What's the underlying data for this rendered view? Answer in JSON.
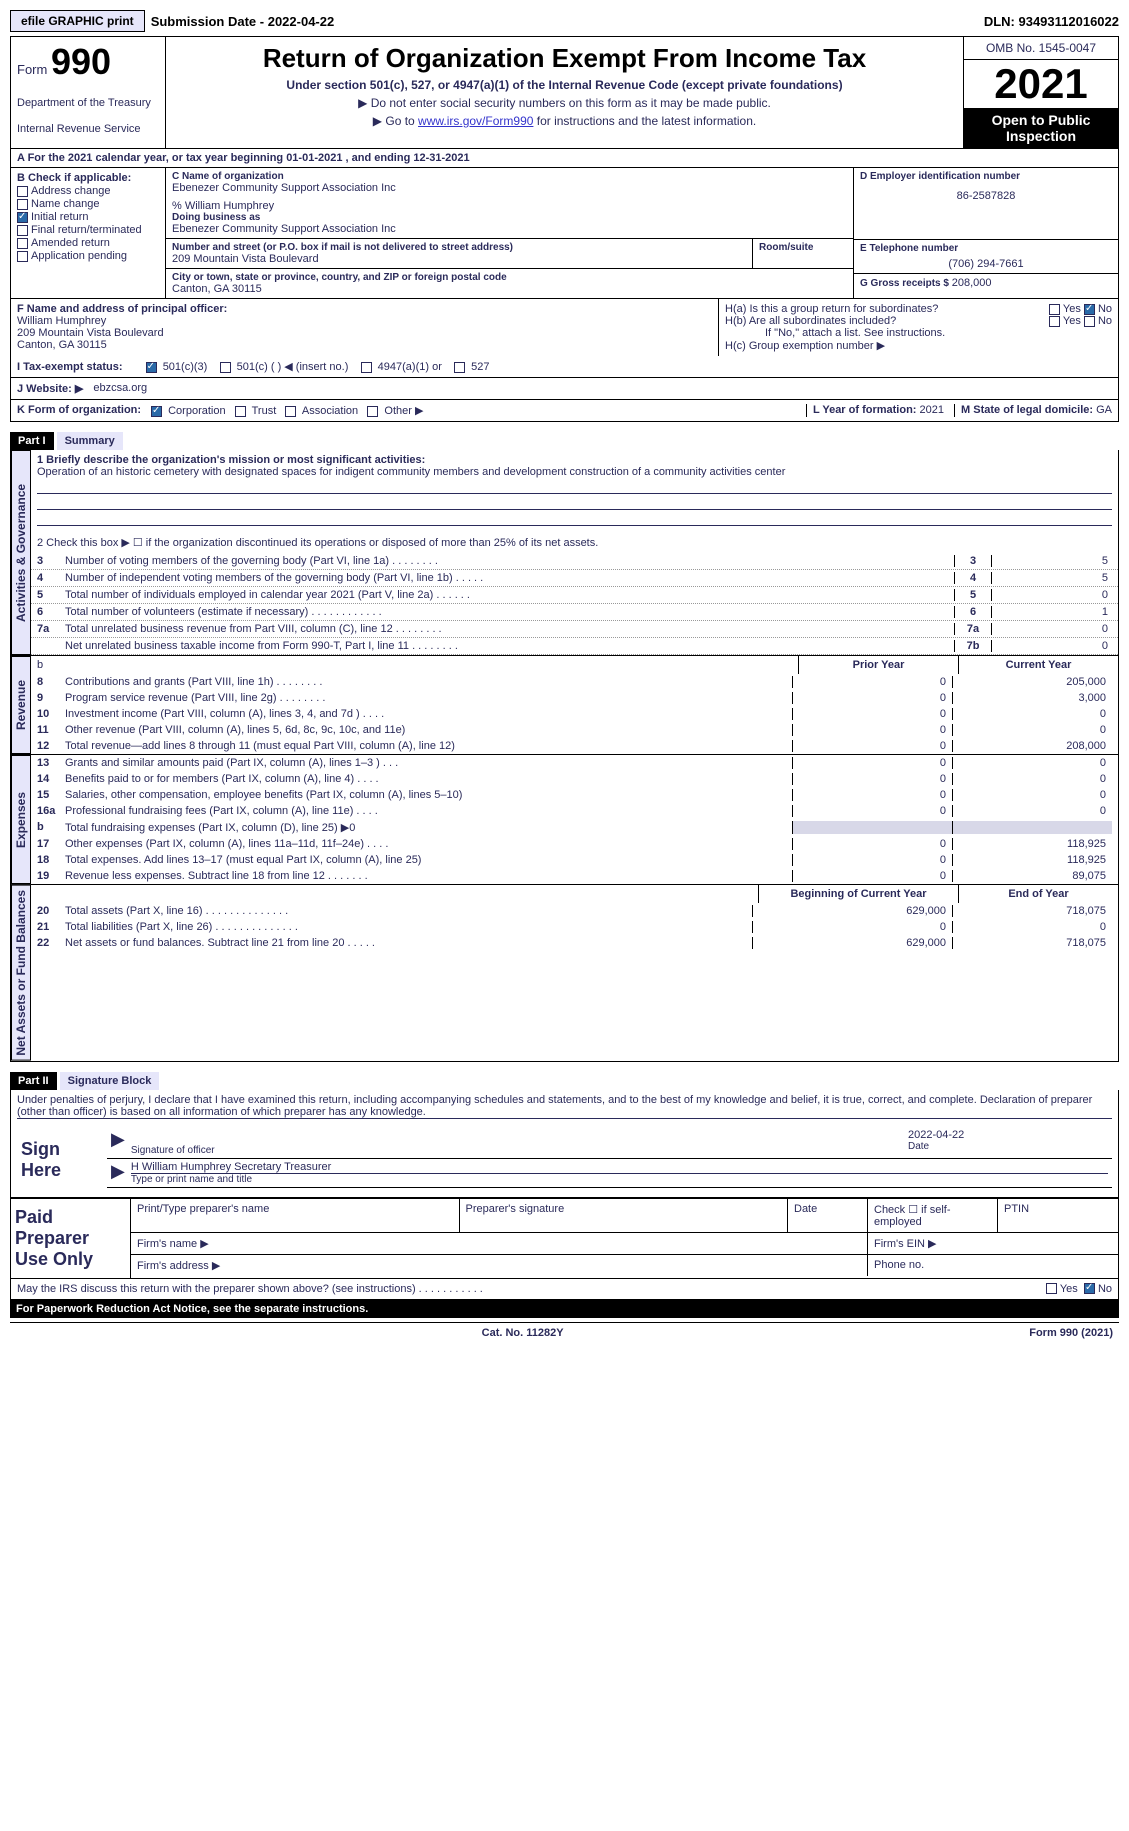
{
  "meta": {
    "efile_btn": "efile GRAPHIC print",
    "sub_date_label": "Submission Date - ",
    "sub_date": "2022-04-22",
    "dln_label": "DLN: ",
    "dln": "93493112016022"
  },
  "header": {
    "form_prefix": "Form",
    "form_number": "990",
    "dept": "Department of the Treasury",
    "irs": "Internal Revenue Service",
    "title": "Return of Organization Exempt From Income Tax",
    "sub": "Under section 501(c), 527, or 4947(a)(1) of the Internal Revenue Code (except private foundations)",
    "note1": "▶ Do not enter social security numbers on this form as it may be made public.",
    "note2_pre": "▶ Go to ",
    "note2_link": "www.irs.gov/Form990",
    "note2_post": " for instructions and the latest information.",
    "omb": "OMB No. 1545-0047",
    "year": "2021",
    "open": "Open to Public Inspection"
  },
  "row_a": {
    "text": "A For the 2021 calendar year, or tax year beginning 01-01-2021    , and ending 12-31-2021"
  },
  "col_b": {
    "hdr": "B Check if applicable:",
    "items": [
      {
        "label": "Address change",
        "checked": false
      },
      {
        "label": "Name change",
        "checked": false
      },
      {
        "label": "Initial return",
        "checked": true
      },
      {
        "label": "Final return/terminated",
        "checked": false
      },
      {
        "label": "Amended return",
        "checked": false
      },
      {
        "label": "Application pending",
        "checked": false
      }
    ]
  },
  "col_c": {
    "name_lbl": "C Name of organization",
    "name": "Ebenezer Community Support Association Inc",
    "care_of": "% William Humphrey",
    "dba_lbl": "Doing business as",
    "dba": "Ebenezer Community Support Association Inc",
    "street_lbl": "Number and street (or P.O. box if mail is not delivered to street address)",
    "street": "209 Mountain Vista Boulevard",
    "room_lbl": "Room/suite",
    "city_lbl": "City or town, state or province, country, and ZIP or foreign postal code",
    "city": "Canton, GA   30115"
  },
  "col_d": {
    "ein_lbl": "D Employer identification number",
    "ein": "86-2587828",
    "phone_lbl": "E Telephone number",
    "phone": "(706) 294-7661",
    "gross_lbl": "G Gross receipts $ ",
    "gross": "208,000"
  },
  "col_f": {
    "lbl": "F  Name and address of principal officer:",
    "name": "William Humphrey",
    "street": "209 Mountain Vista Boulevard",
    "city": "Canton, GA   30115"
  },
  "col_h": {
    "ha": "H(a)  Is this a group return for subordinates?",
    "ha_yes": "Yes",
    "ha_no": "No",
    "ha_checked": "No",
    "hb": "H(b)  Are all subordinates included?",
    "hb_yes": "Yes",
    "hb_no": "No",
    "hb_note": "If \"No,\" attach a list. See instructions.",
    "hc": "H(c)  Group exemption number ▶"
  },
  "row_i": {
    "lbl": "I   Tax-exempt status:",
    "opts": [
      "501(c)(3)",
      "501(c) (   ) ◀ (insert no.)",
      "4947(a)(1) or",
      "527"
    ],
    "checked_idx": 0
  },
  "row_j": {
    "lbl": "J   Website: ▶",
    "val": "ebzcsa.org"
  },
  "row_k": {
    "lbl": "K Form of organization:",
    "opts": [
      "Corporation",
      "Trust",
      "Association",
      "Other ▶"
    ],
    "checked_idx": 0,
    "l_lbl": "L Year of formation: ",
    "l_val": "2021",
    "m_lbl": "M State of legal domicile: ",
    "m_val": "GA"
  },
  "part1": {
    "hdr": "Part I",
    "title": "Summary",
    "mission_lbl": "1   Briefly describe the organization's mission or most significant activities:",
    "mission": "Operation of an historic cemetery with designated spaces for indigent community members and development construction of a community activities center",
    "line2": "2    Check this box ▶ ☐  if the organization discontinued its operations or disposed of more than 25% of its net assets.",
    "side_labels": {
      "gov": "Activities & Governance",
      "rev": "Revenue",
      "exp": "Expenses",
      "net": "Net Assets or Fund Balances"
    },
    "gov_lines": [
      {
        "n": "3",
        "t": "Number of voting members of the governing body (Part VI, line 1a)   .    .    .    .    .    .    .    .",
        "box": "3",
        "v": "5"
      },
      {
        "n": "4",
        "t": "Number of independent voting members of the governing body (Part VI, line 1b)  .    .    .    .    .",
        "box": "4",
        "v": "5"
      },
      {
        "n": "5",
        "t": "Total number of individuals employed in calendar year 2021 (Part V, line 2a)   .    .    .    .    .    .",
        "box": "5",
        "v": "0"
      },
      {
        "n": "6",
        "t": "Total number of volunteers (estimate if necessary)    .    .    .    .    .    .    .    .    .    .    .    .",
        "box": "6",
        "v": "1"
      },
      {
        "n": "7a",
        "t": "Total unrelated business revenue from Part VIII, column (C), line 12    .    .    .    .    .    .    .    .",
        "box": "7a",
        "v": "0"
      },
      {
        "n": "",
        "t": "Net unrelated business taxable income from Form 990-T, Part I, line 11   .    .    .    .    .    .    .    .",
        "box": "7b",
        "v": "0"
      }
    ],
    "col_hdr_prior": "Prior Year",
    "col_hdr_curr": "Current Year",
    "rev_lines": [
      {
        "n": "8",
        "t": "Contributions and grants (Part VIII, line 1h)    .    .    .    .    .    .    .    .",
        "p": "0",
        "c": "205,000"
      },
      {
        "n": "9",
        "t": "Program service revenue (Part VIII, line 2g)    .    .    .    .    .    .    .    .",
        "p": "0",
        "c": "3,000"
      },
      {
        "n": "10",
        "t": "Investment income (Part VIII, column (A), lines 3, 4, and 7d )   .    .    .    .",
        "p": "0",
        "c": "0"
      },
      {
        "n": "11",
        "t": "Other revenue (Part VIII, column (A), lines 5, 6d, 8c, 9c, 10c, and 11e)",
        "p": "0",
        "c": "0"
      },
      {
        "n": "12",
        "t": "Total revenue—add lines 8 through 11 (must equal Part VIII, column (A), line 12)",
        "p": "0",
        "c": "208,000"
      }
    ],
    "exp_lines": [
      {
        "n": "13",
        "t": "Grants and similar amounts paid (Part IX, column (A), lines 1–3 )   .    .    .",
        "p": "0",
        "c": "0"
      },
      {
        "n": "14",
        "t": "Benefits paid to or for members (Part IX, column (A), line 4)   .    .    .    .",
        "p": "0",
        "c": "0"
      },
      {
        "n": "15",
        "t": "Salaries, other compensation, employee benefits (Part IX, column (A), lines 5–10)",
        "p": "0",
        "c": "0"
      },
      {
        "n": "16a",
        "t": "Professional fundraising fees (Part IX, column (A), line 11e)   .    .    .    .",
        "p": "0",
        "c": "0"
      },
      {
        "n": "b",
        "t": "Total fundraising expenses (Part IX, column (D), line 25) ▶0",
        "p": "",
        "c": "",
        "shade": true
      },
      {
        "n": "17",
        "t": "Other expenses (Part IX, column (A), lines 11a–11d, 11f–24e)   .    .    .    .",
        "p": "0",
        "c": "118,925"
      },
      {
        "n": "18",
        "t": "Total expenses. Add lines 13–17 (must equal Part IX, column (A), line 25)",
        "p": "0",
        "c": "118,925"
      },
      {
        "n": "19",
        "t": "Revenue less expenses. Subtract line 18 from line 12   .    .    .    .    .    .    .",
        "p": "0",
        "c": "89,075"
      }
    ],
    "net_hdr_beg": "Beginning of Current Year",
    "net_hdr_end": "End of Year",
    "net_lines": [
      {
        "n": "20",
        "t": "Total assets (Part X, line 16)   .    .    .    .    .    .    .    .    .    .    .    .    .    .",
        "p": "629,000",
        "c": "718,075"
      },
      {
        "n": "21",
        "t": "Total liabilities (Part X, line 26)   .    .    .    .    .    .    .    .    .    .    .    .    .    .",
        "p": "0",
        "c": "0"
      },
      {
        "n": "22",
        "t": "Net assets or fund balances. Subtract line 21 from line 20   .    .    .    .    .",
        "p": "629,000",
        "c": "718,075"
      }
    ]
  },
  "part2": {
    "hdr": "Part II",
    "title": "Signature Block",
    "decl": "Under penalties of perjury, I declare that I have examined this return, including accompanying schedules and statements, and to the best of my knowledge and belief, it is true, correct, and complete. Declaration of preparer (other than officer) is based on all information of which preparer has any knowledge.",
    "sign_here": "Sign Here",
    "sig_officer": "Signature of officer",
    "sig_date": "2022-04-22",
    "sig_date_lbl": "Date",
    "officer_name": "H William Humphrey  Secretary Treasurer",
    "officer_name_lbl": "Type or print name and title",
    "paid": "Paid Preparer Use Only",
    "prep_name_lbl": "Print/Type preparer's name",
    "prep_sig_lbl": "Preparer's signature",
    "prep_date_lbl": "Date",
    "prep_check_lbl": "Check ☐ if self-employed",
    "prep_ptin_lbl": "PTIN",
    "firm_name_lbl": "Firm's name    ▶",
    "firm_ein_lbl": "Firm's EIN ▶",
    "firm_addr_lbl": "Firm's address ▶",
    "firm_phone_lbl": "Phone no.",
    "discuss": "May the IRS discuss this return with the preparer shown above? (see instructions)   .    .    .    .    .    .    .    .    .    .    .",
    "discuss_yes": "Yes",
    "discuss_no": "No",
    "discuss_checked": "No"
  },
  "footer": {
    "paperwork": "For Paperwork Reduction Act Notice, see the separate instructions.",
    "cat": "Cat. No. 11282Y",
    "form": "Form 990 (2021)"
  },
  "colors": {
    "primary": "#2a2a5a",
    "link": "#3333cc",
    "header_bg": "#e6e6fa",
    "black": "#000000",
    "shade": "#d8d8e8"
  }
}
